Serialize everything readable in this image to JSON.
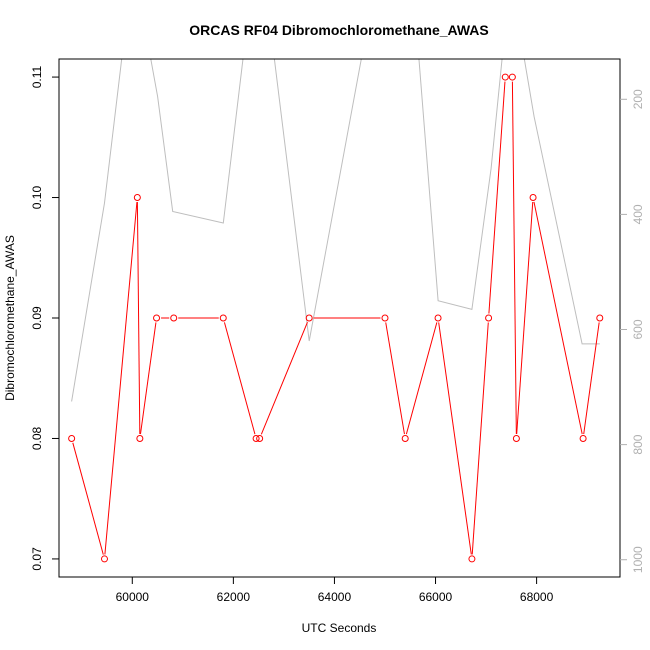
{
  "chart_data": {
    "type": "line",
    "title": "ORCAS RF04 Dibromochloromethane_AWAS",
    "xlabel": "UTC Seconds",
    "ylabel": "Dibromochloromethane_AWAS",
    "xlim": [
      58550,
      69650
    ],
    "ylim": [
      0.0685,
      0.1115
    ],
    "y2lim": [
      1030,
      130
    ],
    "x_ticks": [
      {
        "value": 60000,
        "label": "60000"
      },
      {
        "value": 62000,
        "label": "62000"
      },
      {
        "value": 64000,
        "label": "64000"
      },
      {
        "value": 66000,
        "label": "66000"
      },
      {
        "value": 68000,
        "label": "68000"
      }
    ],
    "y_ticks": [
      {
        "value": 0.07,
        "label": "0.07"
      },
      {
        "value": 0.08,
        "label": "0.08"
      },
      {
        "value": 0.09,
        "label": "0.09"
      },
      {
        "value": 0.1,
        "label": "0.10"
      },
      {
        "value": 0.11,
        "label": "0.11"
      }
    ],
    "y2_ticks": [
      {
        "value": 200,
        "label": "200"
      },
      {
        "value": 400,
        "label": "400"
      },
      {
        "value": 600,
        "label": "600"
      },
      {
        "value": 800,
        "label": "800"
      },
      {
        "value": 1000,
        "label": "1000"
      }
    ],
    "colors": {
      "primary": "#ff0000",
      "secondary": "#bebebe"
    },
    "series": [
      {
        "axis": "left",
        "style": "line+points",
        "color": "#ff0000",
        "points": [
          {
            "x": 58800,
            "y": 0.08
          },
          {
            "x": 59450,
            "y": 0.07
          },
          {
            "x": 60100,
            "y": 0.1
          },
          {
            "x": 60150,
            "y": 0.08
          },
          {
            "x": 60480,
            "y": 0.09
          },
          {
            "x": 60820,
            "y": 0.09
          },
          {
            "x": 61800,
            "y": 0.09
          },
          {
            "x": 62450,
            "y": 0.08
          },
          {
            "x": 62520,
            "y": 0.08
          },
          {
            "x": 63500,
            "y": 0.09
          },
          {
            "x": 65000,
            "y": 0.09
          },
          {
            "x": 65400,
            "y": 0.08
          },
          {
            "x": 66050,
            "y": 0.09
          },
          {
            "x": 66720,
            "y": 0.07
          },
          {
            "x": 67050,
            "y": 0.09
          },
          {
            "x": 67380,
            "y": 0.11
          },
          {
            "x": 67520,
            "y": 0.11
          },
          {
            "x": 67600,
            "y": 0.08
          },
          {
            "x": 67930,
            "y": 0.1
          },
          {
            "x": 68920,
            "y": 0.08
          },
          {
            "x": 69250,
            "y": 0.09
          }
        ]
      },
      {
        "axis": "right",
        "style": "line",
        "color": "#bebebe",
        "points": [
          {
            "x": 58800,
            "y": 725
          },
          {
            "x": 59450,
            "y": 380
          },
          {
            "x": 59900,
            "y": 50
          },
          {
            "x": 60200,
            "y": 50
          },
          {
            "x": 60500,
            "y": 195
          },
          {
            "x": 60800,
            "y": 395
          },
          {
            "x": 61800,
            "y": 415
          },
          {
            "x": 62300,
            "y": 50
          },
          {
            "x": 62700,
            "y": 50
          },
          {
            "x": 63500,
            "y": 620
          },
          {
            "x": 64700,
            "y": 50
          },
          {
            "x": 65600,
            "y": 50
          },
          {
            "x": 66050,
            "y": 550
          },
          {
            "x": 66720,
            "y": 565
          },
          {
            "x": 67100,
            "y": 320
          },
          {
            "x": 67350,
            "y": 100
          },
          {
            "x": 67700,
            "y": 100
          },
          {
            "x": 67950,
            "y": 230
          },
          {
            "x": 68900,
            "y": 625
          },
          {
            "x": 69250,
            "y": 625
          }
        ]
      }
    ]
  }
}
